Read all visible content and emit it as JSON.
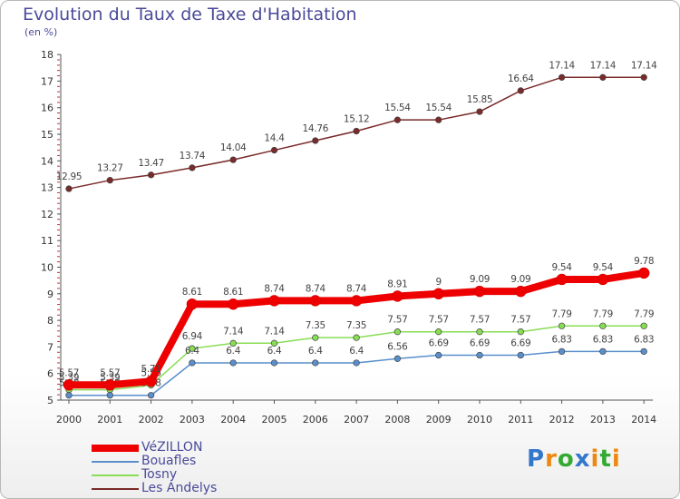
{
  "chart_data": {
    "type": "line",
    "title": "Evolution du Taux de Taxe d'Habitation",
    "subtitle": "(en %)",
    "x": [
      "2000",
      "2001",
      "2002",
      "2003",
      "2004",
      "2005",
      "2006",
      "2007",
      "2008",
      "2009",
      "2010",
      "2011",
      "2012",
      "2013",
      "2014"
    ],
    "ylim": [
      5,
      18
    ],
    "yticks": [
      "5",
      "6",
      "7",
      "8",
      "9",
      "10",
      "11",
      "12",
      "13",
      "14",
      "15",
      "16",
      "17",
      "18"
    ],
    "series": [
      {
        "name": "Les Andelys",
        "color": "#7a2a2a",
        "values": [
          12.95,
          13.27,
          13.47,
          13.74,
          14.04,
          14.4,
          14.76,
          15.12,
          15.54,
          15.54,
          15.85,
          16.64,
          17.14,
          17.14,
          17.14
        ],
        "labels": [
          "12.95",
          "13.27",
          "13.47",
          "13.74",
          "14.04",
          "14.4",
          "14.76",
          "15.12",
          "15.54",
          "15.54",
          "15.85",
          "16.64",
          "17.14",
          "17.14",
          "17.14"
        ]
      },
      {
        "name": "Tosny",
        "color": "#88dd55",
        "values": [
          5.39,
          5.39,
          5.56,
          6.94,
          7.14,
          7.14,
          7.35,
          7.35,
          7.57,
          7.57,
          7.57,
          7.57,
          7.79,
          7.79,
          7.79
        ],
        "labels": [
          "5.39",
          "5.39",
          "5.56",
          "6.94",
          "7.14",
          "7.14",
          "7.35",
          "7.35",
          "7.57",
          "7.57",
          "7.57",
          "7.57",
          "7.79",
          "7.79",
          "7.79"
        ]
      },
      {
        "name": "Bouafles",
        "color": "#5a8fcc",
        "values": [
          5.18,
          5.18,
          5.18,
          6.4,
          6.4,
          6.4,
          6.4,
          6.4,
          6.56,
          6.69,
          6.69,
          6.69,
          6.83,
          6.83,
          6.83
        ],
        "labels": [
          "5.18",
          "5.18",
          "5.18",
          "6.4",
          "6.4",
          "6.4",
          "6.4",
          "6.4",
          "6.56",
          "6.69",
          "6.69",
          "6.69",
          "6.83",
          "6.83",
          "6.83"
        ]
      },
      {
        "name": "VéZILLON",
        "color": "#ee0000",
        "values": [
          5.57,
          5.57,
          5.71,
          8.61,
          8.61,
          8.74,
          8.74,
          8.74,
          8.91,
          9,
          9.09,
          9.09,
          9.54,
          9.54,
          9.78
        ],
        "labels": [
          "5.57",
          "5.57",
          "5.71",
          "8.61",
          "8.61",
          "8.74",
          "8.74",
          "8.74",
          "8.91",
          "9",
          "9.09",
          "9.09",
          "9.54",
          "9.54",
          "9.78"
        ]
      }
    ],
    "legend": [
      "VéZILLON",
      "Bouafles",
      "Tosny",
      "Les Andelys"
    ],
    "legend_position": "bottom-left",
    "grid": false
  },
  "logo": {
    "text": "Proxiti",
    "letters": [
      "P",
      "r",
      "o",
      "x",
      "i",
      "t",
      "i"
    ],
    "colors": [
      "#3377cc",
      "#ee8811",
      "#33aa33",
      "#3377cc",
      "#ee8811",
      "#33aa33",
      "#ee8811"
    ]
  }
}
